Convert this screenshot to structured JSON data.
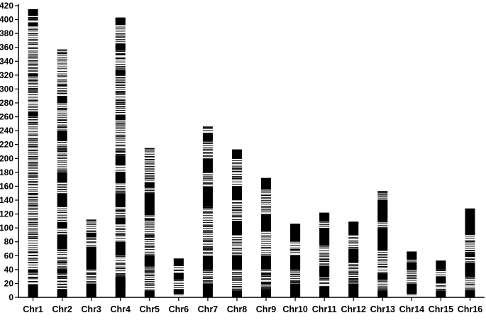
{
  "chart_data": {
    "type": "bar",
    "subtype": "marker-density-strips",
    "title": "",
    "xlabel": "",
    "ylabel": "",
    "ylim": [
      0,
      420
    ],
    "y_ticks": [
      0,
      20,
      40,
      60,
      80,
      100,
      120,
      140,
      160,
      180,
      200,
      220,
      240,
      260,
      280,
      300,
      320,
      340,
      360,
      380,
      400,
      420
    ],
    "grid": false,
    "legend": "none",
    "bar_color": "#000000",
    "categories": [
      "Chr1",
      "Chr2",
      "Chr3",
      "Chr4",
      "Chr5",
      "Chr6",
      "Chr7",
      "Chr8",
      "Chr9",
      "Chr10",
      "Chr11",
      "Chr12",
      "Chr13",
      "Chr14",
      "Chr15",
      "Chr16"
    ],
    "lengths": [
      414,
      356,
      111,
      402,
      214,
      55,
      245,
      212,
      171,
      105,
      121,
      108,
      152,
      65,
      52,
      127
    ],
    "dense_blocks": [
      [
        [
          0,
          18
        ],
        [
          36,
          40
        ],
        [
          260,
          267
        ],
        [
          318,
          322
        ],
        [
          390,
          396
        ],
        [
          405,
          414
        ]
      ],
      [
        [
          0,
          12
        ],
        [
          34,
          40
        ],
        [
          70,
          90
        ],
        [
          100,
          108
        ],
        [
          130,
          150
        ],
        [
          165,
          180
        ],
        [
          225,
          240
        ],
        [
          280,
          290
        ]
      ],
      [
        [
          0,
          20
        ],
        [
          40,
          73
        ],
        [
          87,
          93
        ]
      ],
      [
        [
          0,
          30
        ],
        [
          60,
          80
        ],
        [
          105,
          115
        ],
        [
          130,
          150
        ],
        [
          165,
          180
        ],
        [
          190,
          205
        ],
        [
          255,
          262
        ],
        [
          320,
          327
        ],
        [
          355,
          365
        ],
        [
          392,
          402
        ]
      ],
      [
        [
          0,
          10
        ],
        [
          45,
          60
        ],
        [
          118,
          150
        ],
        [
          158,
          165
        ]
      ],
      [
        [
          5,
          12
        ],
        [
          25,
          35
        ],
        [
          45,
          55
        ]
      ],
      [
        [
          0,
          20
        ],
        [
          40,
          60
        ],
        [
          130,
          160
        ],
        [
          180,
          200
        ],
        [
          225,
          235
        ]
      ],
      [
        [
          0,
          10
        ],
        [
          40,
          60
        ],
        [
          90,
          110
        ],
        [
          140,
          160
        ],
        [
          200,
          212
        ]
      ],
      [
        [
          0,
          10
        ],
        [
          40,
          60
        ],
        [
          95,
          120
        ],
        [
          155,
          170
        ]
      ],
      [
        [
          0,
          20
        ],
        [
          40,
          60
        ],
        [
          80,
          105
        ]
      ],
      [
        [
          0,
          15
        ],
        [
          30,
          45
        ],
        [
          75,
          100
        ],
        [
          110,
          121
        ]
      ],
      [
        [
          0,
          20
        ],
        [
          50,
          70
        ],
        [
          90,
          108
        ]
      ],
      [
        [
          0,
          10
        ],
        [
          25,
          35
        ],
        [
          68,
          100
        ],
        [
          110,
          140
        ]
      ],
      [
        [
          5,
          20
        ],
        [
          40,
          50
        ],
        [
          55,
          65
        ]
      ],
      [
        [
          0,
          10
        ],
        [
          20,
          30
        ],
        [
          40,
          52
        ]
      ],
      [
        [
          0,
          10
        ],
        [
          30,
          50
        ],
        [
          58,
          64
        ],
        [
          90,
          127
        ]
      ]
    ]
  }
}
